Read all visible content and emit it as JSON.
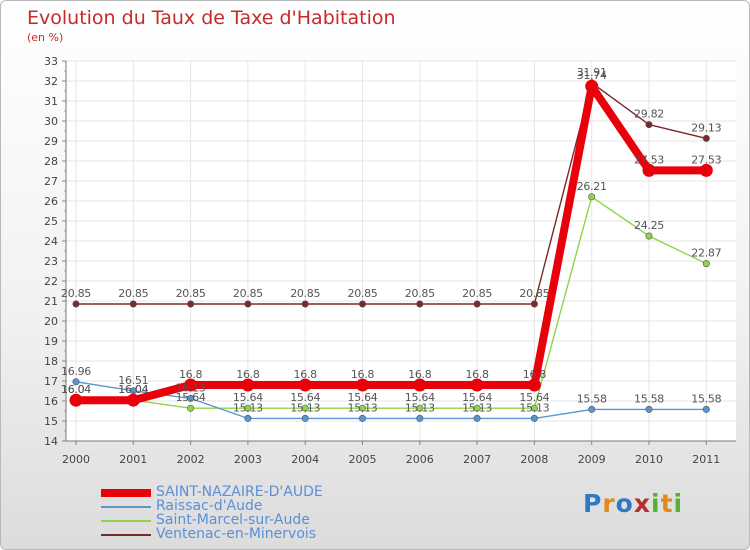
{
  "title": "Evolution du Taux de Taxe d'Habitation",
  "subtitle": "(en %)",
  "logo": {
    "text": "Proxiti",
    "letters": [
      "P",
      "r",
      "o",
      "x",
      "i",
      "t",
      "i"
    ],
    "colors": [
      "#2f78c4",
      "#e38a1f",
      "#2f78c4",
      "#b43030",
      "#58b032",
      "#e38a1f",
      "#58b032"
    ]
  },
  "chart_data": {
    "type": "line",
    "title": "Evolution du Taux de Taxe d'Habitation",
    "ylabel": "(en %)",
    "xlabel": "",
    "ylim": [
      14,
      33
    ],
    "yticks": [
      14,
      15,
      16,
      17,
      18,
      19,
      20,
      21,
      22,
      23,
      24,
      25,
      26,
      27,
      28,
      29,
      30,
      31,
      32,
      33
    ],
    "categories": [
      "2000",
      "2001",
      "2002",
      "2003",
      "2004",
      "2005",
      "2006",
      "2007",
      "2008",
      "2009",
      "2010",
      "2011"
    ],
    "series": [
      {
        "name": "SAINT-NAZAIRE-D'AUDE",
        "color": "#e8000b",
        "values": [
          16.04,
          16.04,
          16.8,
          16.8,
          16.8,
          16.8,
          16.8,
          16.8,
          16.8,
          31.74,
          27.53,
          27.53
        ],
        "labels": [
          "16.04",
          "16.04",
          "16.8",
          "16.8",
          "16.8",
          "16.8",
          "16.8",
          "16.8",
          "16.8",
          "31.74",
          "27.53",
          "27.53"
        ]
      },
      {
        "name": "Raissac-d'Aude",
        "color": "#5b95d1",
        "values": [
          16.96,
          16.51,
          16.13,
          15.13,
          15.13,
          15.13,
          15.13,
          15.13,
          15.13,
          15.58,
          15.58,
          15.58
        ],
        "labels": [
          "16.96",
          "16.51",
          "16.13",
          "15.13",
          "15.13",
          "15.13",
          "15.13",
          "15.13",
          "15.13",
          "15.58",
          "15.58",
          "15.58"
        ]
      },
      {
        "name": "Saint-Marcel-sur-Aude",
        "color": "#8fd44a",
        "values": [
          16.04,
          16.04,
          15.64,
          15.64,
          15.64,
          15.64,
          15.64,
          15.64,
          15.64,
          26.21,
          24.25,
          22.87
        ],
        "labels": [
          "16.04",
          "16.04",
          "15.64",
          "15.64",
          "15.64",
          "15.64",
          "15.64",
          "15.64",
          "15.64",
          "26.21",
          "24.25",
          "22.87"
        ]
      },
      {
        "name": "Ventenac-en-Minervois",
        "color": "#7a2a2a",
        "values": [
          20.85,
          20.85,
          20.85,
          20.85,
          20.85,
          20.85,
          20.85,
          20.85,
          20.85,
          31.91,
          29.82,
          29.13
        ],
        "labels": [
          "20.85",
          "20.85",
          "20.85",
          "20.85",
          "20.85",
          "20.85",
          "20.85",
          "20.85",
          "20.85",
          "31.91",
          "29.82",
          "29.13"
        ]
      }
    ],
    "legend": [
      {
        "name": "SAINT-NAZAIRE-D'AUDE",
        "color": "#e8000b"
      },
      {
        "name": "Raissac-d'Aude",
        "color": "#5b95d1"
      },
      {
        "name": "Saint-Marcel-sur-Aude",
        "color": "#8fd44a"
      },
      {
        "name": "Ventenac-en-Minervois",
        "color": "#7a2a2a"
      }
    ]
  }
}
